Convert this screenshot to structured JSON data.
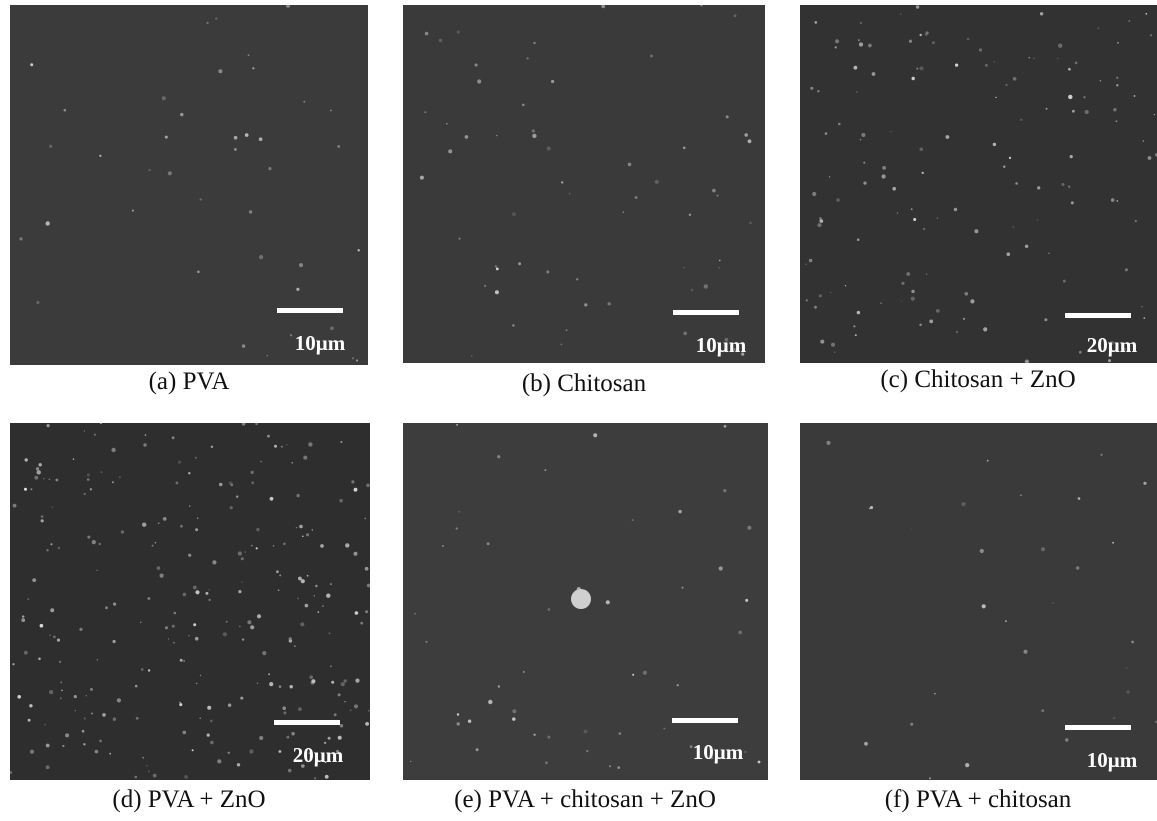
{
  "panels": [
    {
      "caption": "(a) PVA",
      "scale": "10μm"
    },
    {
      "caption": "(b) Chitosan",
      "scale": "10μm"
    },
    {
      "caption": "(c) Chitosan + ZnO",
      "scale": "20μm"
    },
    {
      "caption": "(d) PVA + ZnO",
      "scale": "20μm"
    },
    {
      "caption": "(e) PVA + chitosan + ZnO",
      "scale": "10μm"
    },
    {
      "caption": "(f) PVA + chitosan",
      "scale": "10μm"
    }
  ]
}
